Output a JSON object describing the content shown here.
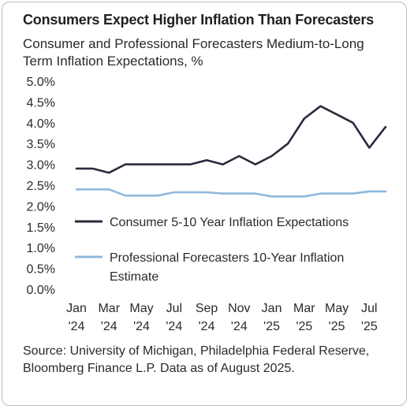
{
  "chart_data": {
    "type": "line",
    "title": "Consumers Expect Higher Inflation Than Forecasters",
    "subtitle": "Consumer and Professional Forecasters Medium-to-Long Term Inflation Expectations, %",
    "x": [
      "Jan '24",
      "Feb '24",
      "Mar '24",
      "Apr '24",
      "May '24",
      "Jun '24",
      "Jul '24",
      "Aug '24",
      "Sep '24",
      "Oct '24",
      "Nov '24",
      "Dec '24",
      "Jan '25",
      "Feb '25",
      "Mar '25",
      "Apr '25",
      "May '25",
      "Jun '25",
      "Jul '25",
      "Aug '25"
    ],
    "x_tick_labels": [
      {
        "month": "Jan",
        "year": "'24"
      },
      {
        "month": "Mar",
        "year": "'24"
      },
      {
        "month": "May",
        "year": "'24"
      },
      {
        "month": "Jul",
        "year": "'24"
      },
      {
        "month": "Sep",
        "year": "'24"
      },
      {
        "month": "Nov",
        "year": "'24"
      },
      {
        "month": "Jan",
        "year": "'25"
      },
      {
        "month": "Mar",
        "year": "'25"
      },
      {
        "month": "May",
        "year": "'25"
      },
      {
        "month": "Jul",
        "year": "'25"
      }
    ],
    "y_tick_labels": [
      "0.0%",
      "0.5%",
      "1.0%",
      "1.5%",
      "2.0%",
      "2.5%",
      "3.0%",
      "3.5%",
      "4.0%",
      "4.5%",
      "5.0%"
    ],
    "ylim": [
      0,
      5
    ],
    "grid": false,
    "legend_position": "center",
    "series": [
      {
        "name": "Consumer 5-10 Year Inflation Expectations",
        "color": "#2b2a3d",
        "values": [
          2.9,
          2.9,
          2.8,
          3.0,
          3.0,
          3.0,
          3.0,
          3.0,
          3.1,
          3.0,
          3.2,
          3.0,
          3.2,
          3.5,
          4.1,
          4.4,
          4.2,
          4.0,
          3.4,
          3.9
        ]
      },
      {
        "name": "Professional Forecasters 10-Year Inflation Estimate",
        "color": "#8fb8dc",
        "values": [
          2.4,
          2.4,
          2.4,
          2.25,
          2.25,
          2.25,
          2.33,
          2.33,
          2.33,
          2.3,
          2.3,
          2.3,
          2.23,
          2.23,
          2.23,
          2.3,
          2.3,
          2.3,
          2.35,
          2.35
        ]
      }
    ],
    "legend_lines": [
      [
        "Consumer 5-10 Year Inflation Expectations"
      ],
      [
        "Professional Forecasters 10-Year Inflation",
        "Estimate"
      ]
    ]
  },
  "source": "Source: University of Michigan, Philadelphia Federal Reserve, Bloomberg Finance L.P. Data as of August 2025."
}
